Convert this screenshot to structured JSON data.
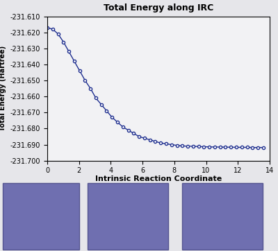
{
  "chart_data": {
    "type": "line",
    "title": "Total Energy along IRC",
    "x_label": "Intrinsic Reaction Coordinate",
    "y_label": "Total Energy (Hartree)",
    "x": [
      0,
      0.34,
      0.68,
      1.02,
      1.36,
      1.7,
      2.04,
      2.38,
      2.72,
      3.06,
      3.4,
      3.74,
      4.08,
      4.42,
      4.76,
      5.1,
      5.44,
      5.78,
      6.12,
      6.46,
      6.8,
      7.14,
      7.48,
      7.82,
      8.16,
      8.5,
      8.84,
      9.18,
      9.52,
      9.86,
      10.2,
      10.54,
      10.88,
      11.22,
      11.56,
      11.9,
      12.24,
      12.58,
      12.92,
      13.26,
      13.6
    ],
    "series": [
      {
        "name": "Total Energy",
        "color": "#1f2f8f",
        "marker": "o",
        "line_style": "solid",
        "values": [
          -231.617,
          -231.618,
          -231.621,
          -231.626,
          -231.632,
          -231.638,
          -231.644,
          -231.65,
          -231.655,
          -231.661,
          -231.665,
          -231.669,
          -231.673,
          -231.676,
          -231.679,
          -231.681,
          -231.683,
          -231.685,
          -231.686,
          -231.687,
          -231.688,
          -231.689,
          -231.6895,
          -231.69,
          -231.6905,
          -231.6908,
          -231.691,
          -231.691,
          -231.6912,
          -231.6913,
          -231.6914,
          -231.6915,
          -231.6915,
          -231.6916,
          -231.6916,
          -231.6917,
          -231.6917,
          -231.6917,
          -231.6918,
          -231.6918,
          -231.6918
        ]
      }
    ],
    "xlim": [
      0,
      14
    ],
    "xticks": [
      0,
      2,
      4,
      6,
      8,
      10,
      12,
      14
    ],
    "ylim": [
      -231.7,
      -231.61
    ],
    "yticks": [
      {
        "value": -231.7,
        "label": "-231.700"
      },
      {
        "value": -231.69,
        "label": "-231.690"
      },
      {
        "value": -231.68,
        "label": "-231.680"
      },
      {
        "value": -231.67,
        "label": "-231.670"
      },
      {
        "value": -231.66,
        "label": "-231.660"
      },
      {
        "value": -231.65,
        "label": "-231.650"
      },
      {
        "value": -231.64,
        "label": "-231.640"
      },
      {
        "value": -231.63,
        "label": "-231.630"
      },
      {
        "value": -231.62,
        "label": "-231.620"
      },
      {
        "value": -231.61,
        "label": "-231.610"
      }
    ],
    "grid": false
  }
}
